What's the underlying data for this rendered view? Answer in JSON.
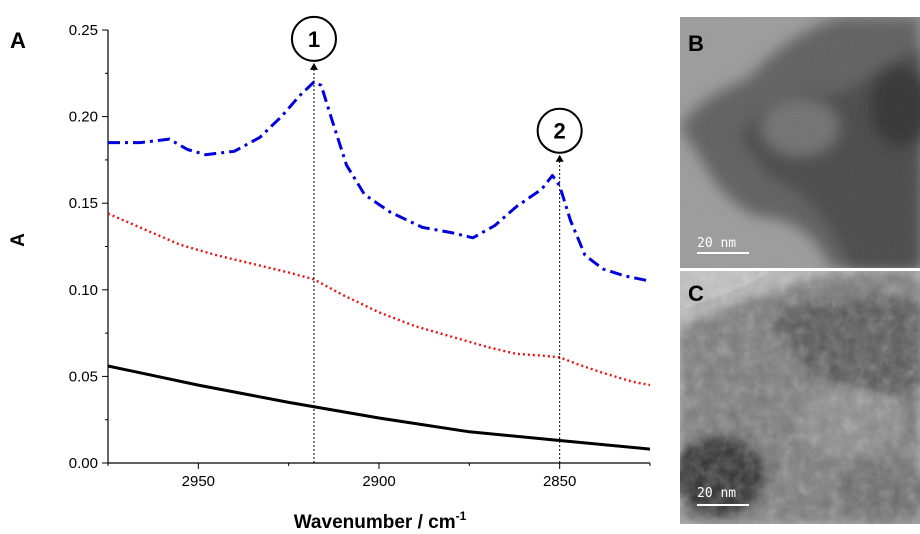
{
  "figure": {
    "panel_a": "A",
    "panel_b": "B",
    "panel_c": "C"
  },
  "chart_data": {
    "type": "line",
    "xlabel": "Wavenumber / cm",
    "xlabel_sup": "-1",
    "ylabel": "A",
    "xlim": [
      2975,
      2825
    ],
    "ylim": [
      0,
      0.25
    ],
    "x_ticks": [
      2950,
      2900,
      2850
    ],
    "x_tick_labels": [
      "2950",
      "2900",
      "2850"
    ],
    "y_ticks": [
      0,
      0.05,
      0.1,
      0.15,
      0.2,
      0.25
    ],
    "y_tick_labels": [
      "0.00",
      "0.05",
      "0.10",
      "0.15",
      "0.20",
      "0.25"
    ],
    "grid": false,
    "legend": "none",
    "series": [
      {
        "color": "#0000dd",
        "style": "dashdot",
        "x": [
          2975,
          2966,
          2958,
          2953,
          2948,
          2940,
          2933,
          2927,
          2922,
          2918,
          2916,
          2913,
          2909,
          2904,
          2897,
          2888,
          2880,
          2874,
          2868,
          2862,
          2855,
          2852,
          2850,
          2847,
          2843,
          2838,
          2832,
          2825
        ],
        "y": [
          0.185,
          0.185,
          0.187,
          0.181,
          0.178,
          0.18,
          0.188,
          0.2,
          0.212,
          0.22,
          0.218,
          0.198,
          0.172,
          0.155,
          0.145,
          0.136,
          0.133,
          0.13,
          0.137,
          0.148,
          0.158,
          0.166,
          0.16,
          0.14,
          0.12,
          0.112,
          0.108,
          0.105
        ]
      },
      {
        "color": "#ee1111",
        "style": "dotted",
        "x": [
          2975,
          2965,
          2955,
          2945,
          2935,
          2925,
          2918,
          2910,
          2900,
          2890,
          2880,
          2870,
          2862,
          2855,
          2850,
          2845,
          2838,
          2830,
          2825
        ],
        "y": [
          0.144,
          0.135,
          0.126,
          0.12,
          0.115,
          0.11,
          0.106,
          0.097,
          0.087,
          0.079,
          0.073,
          0.067,
          0.063,
          0.062,
          0.061,
          0.057,
          0.052,
          0.047,
          0.045
        ]
      },
      {
        "color": "#000000",
        "style": "solid",
        "x": [
          2975,
          2950,
          2925,
          2900,
          2875,
          2850,
          2825
        ],
        "y": [
          0.056,
          0.045,
          0.035,
          0.026,
          0.018,
          0.013,
          0.008
        ]
      }
    ],
    "annotations": [
      {
        "label": "1",
        "x": 2918,
        "y_from": 0,
        "y_to": 0.231
      },
      {
        "label": "2",
        "x": 2850,
        "y_from": 0,
        "y_to": 0.178
      }
    ]
  },
  "tem_images": [
    {
      "panel": "B",
      "scale_label": "20 nm"
    },
    {
      "panel": "C",
      "scale_label": "20 nm"
    }
  ]
}
